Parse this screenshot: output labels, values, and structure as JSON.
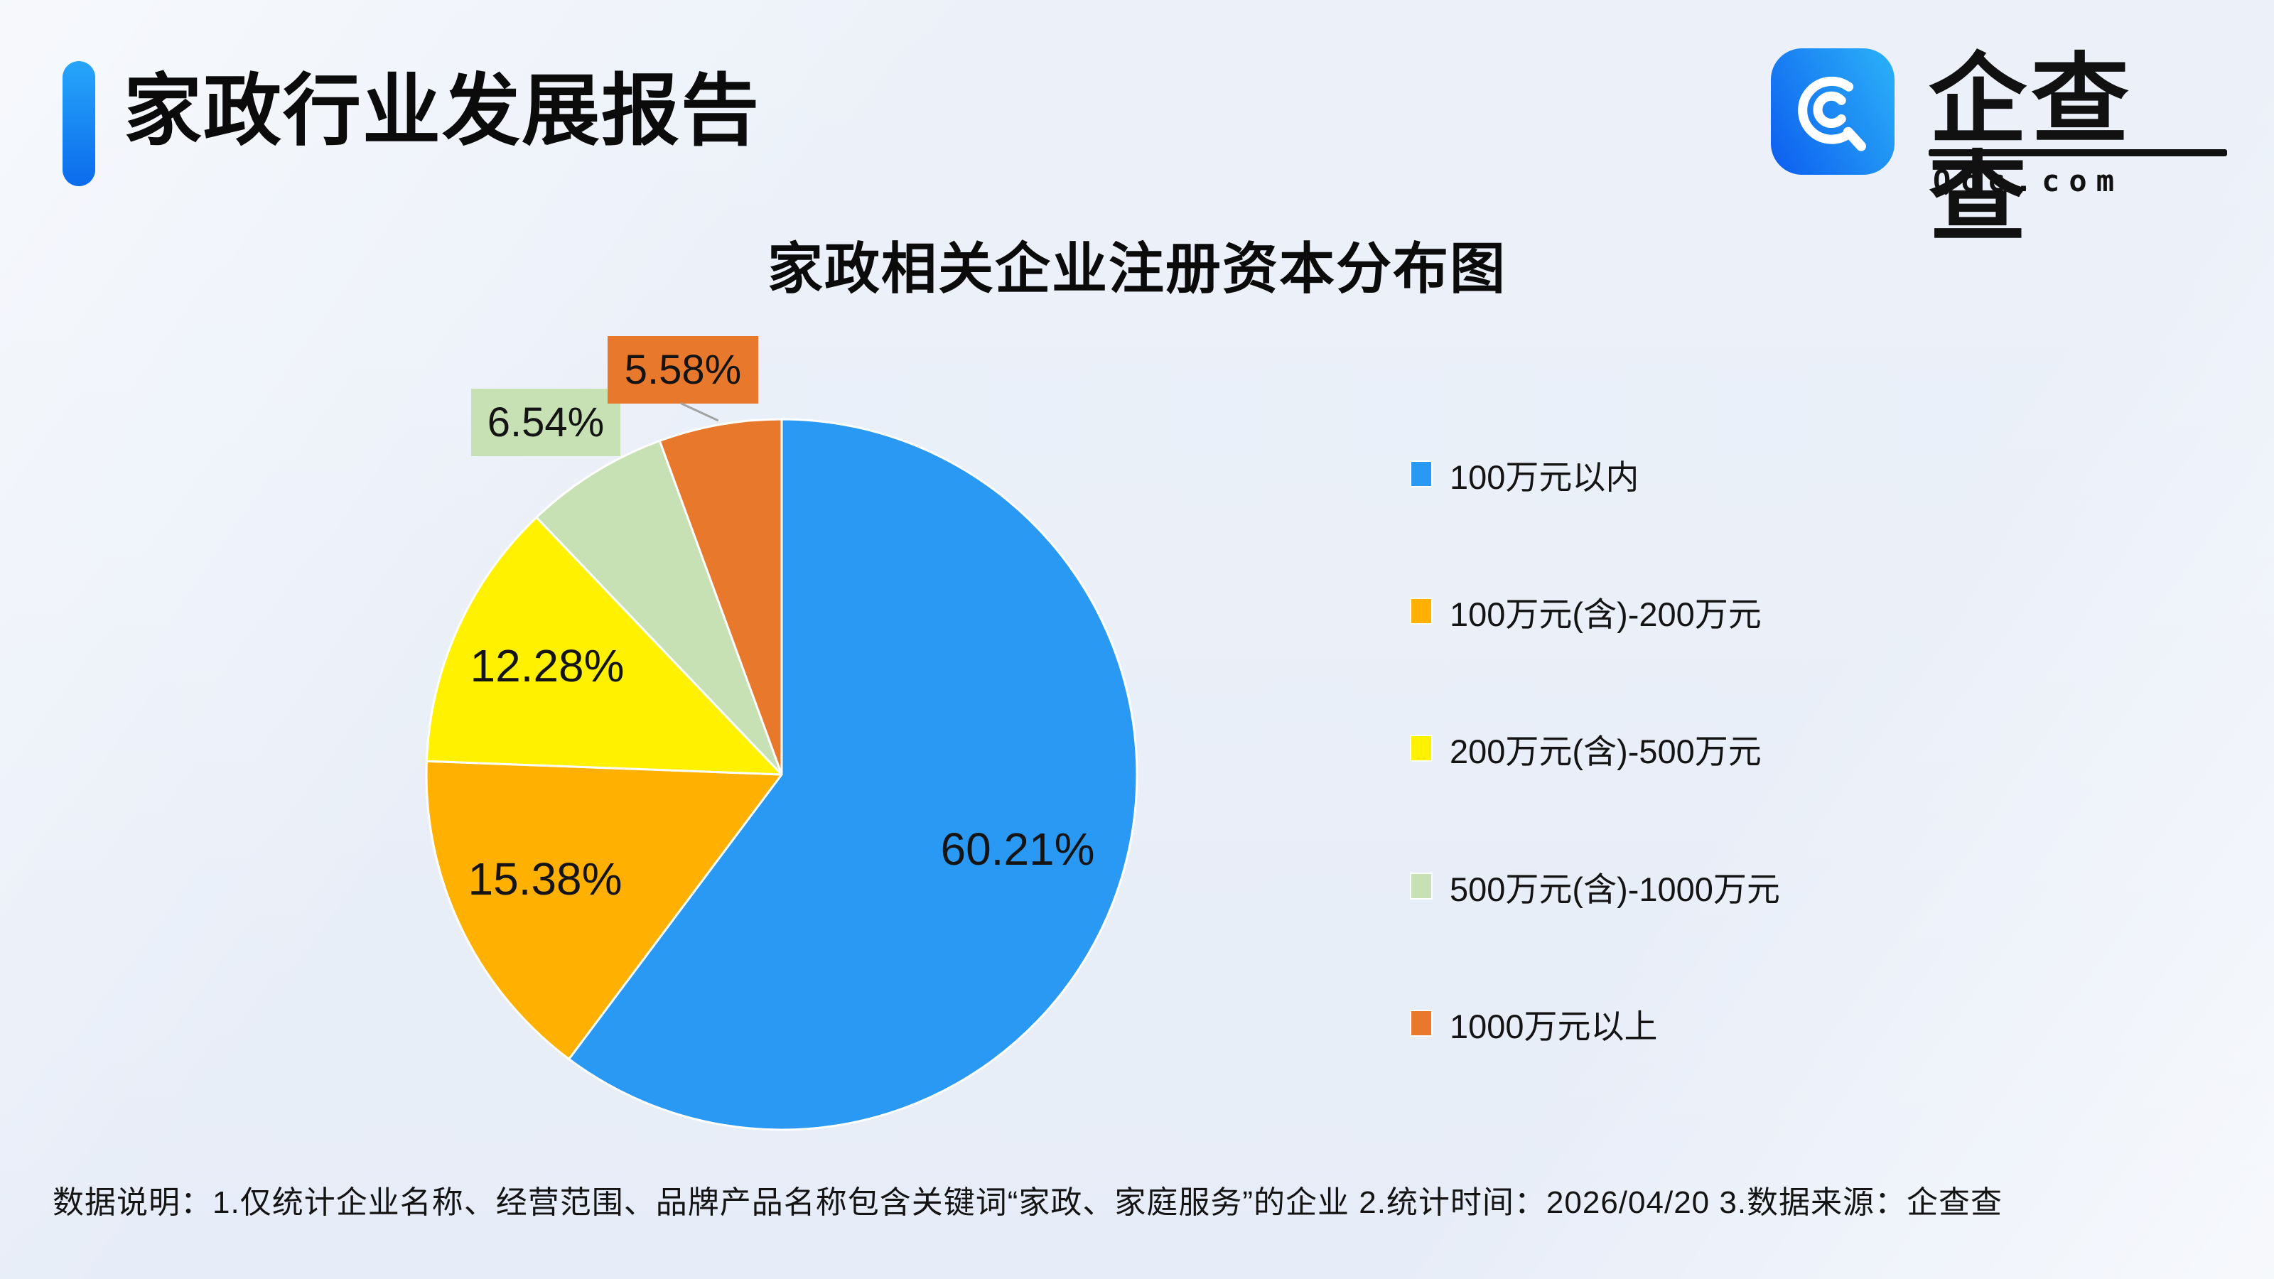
{
  "header": {
    "title": "家政行业发展报告"
  },
  "logo": {
    "brand": "企查查",
    "domain": "Qcc.com",
    "icon": "qcc-magnifier-icon"
  },
  "chart": {
    "title": "家政相关企业注册资本分布图"
  },
  "chart_data": {
    "type": "pie",
    "title": "家政相关企业注册资本分布图",
    "legend_position": "right",
    "start_angle_deg": 0,
    "direction": "clockwise",
    "series": [
      {
        "name": "100万元以内",
        "value": 60.21,
        "label": "60.21%",
        "color": "#2999F3"
      },
      {
        "name": "100万元(含)-200万元",
        "value": 15.38,
        "label": "15.38%",
        "color": "#FFB000"
      },
      {
        "name": "200万元(含)-500万元",
        "value": 12.28,
        "label": "12.28%",
        "color": "#FFF100"
      },
      {
        "name": "500万元(含)-1000万元",
        "value": 6.54,
        "label": "6.54%",
        "color": "#C7E0B4"
      },
      {
        "name": "1000万元以上",
        "value": 5.58,
        "label": "5.58%",
        "color": "#E8792C"
      }
    ]
  },
  "footer": {
    "text": "数据说明：1.仅统计企业名称、经营范围、品牌产品名称包含关键词“家政、家庭服务”的企业  2.统计时间：2026/04/20  3.数据来源：企查查"
  }
}
